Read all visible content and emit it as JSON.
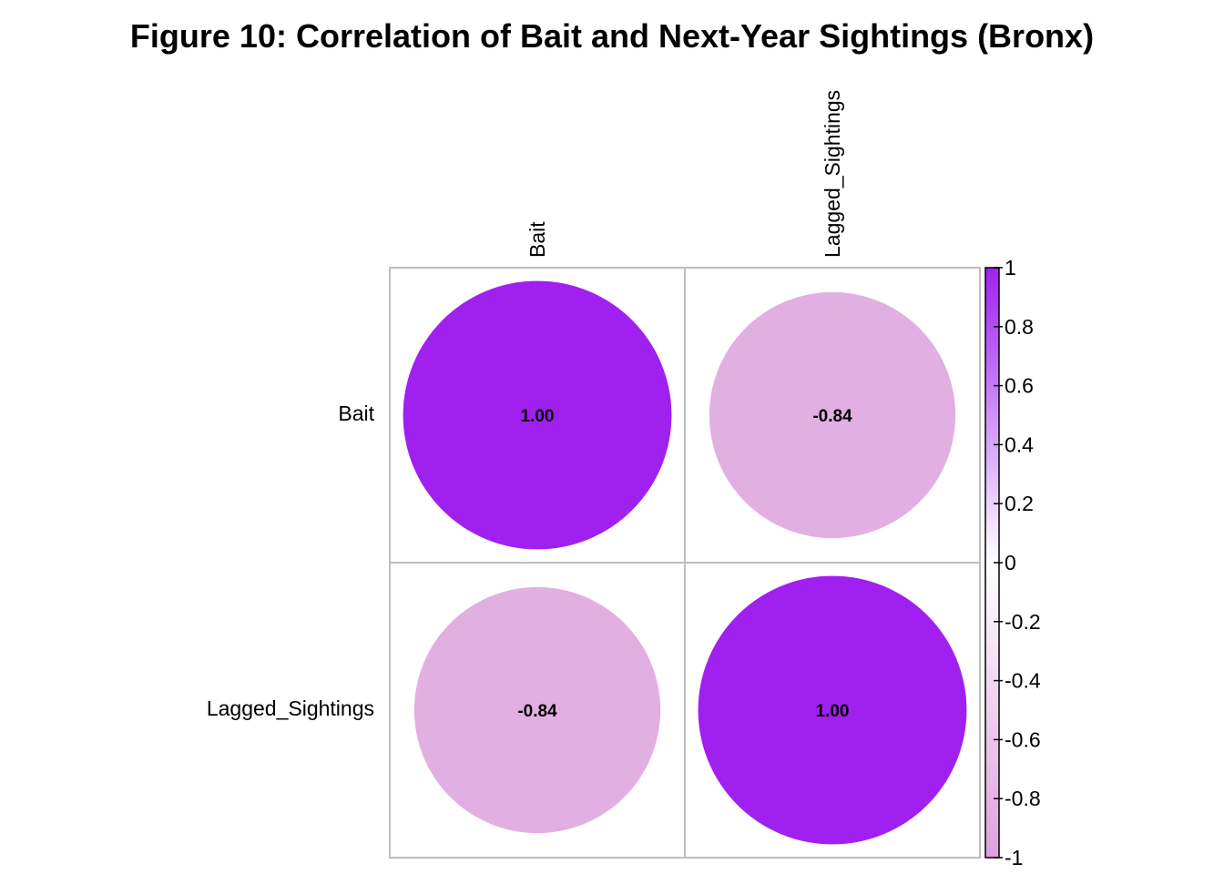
{
  "chart_data": {
    "type": "heatmap",
    "title": "Figure 10: Correlation of Bait and Next-Year Sightings (Bronx)",
    "variables": [
      "Bait",
      "Lagged_Sightings"
    ],
    "matrix": [
      [
        1.0,
        -0.84
      ],
      [
        -0.84,
        1.0
      ]
    ],
    "cell_labels": [
      [
        "1.00",
        "-0.84"
      ],
      [
        "-0.84",
        "1.00"
      ]
    ],
    "glyph": "circle",
    "color_scale": {
      "min": -1,
      "max": 1,
      "ticks": [
        "1",
        "0.8",
        "0.6",
        "0.4",
        "0.2",
        "0",
        "-0.2",
        "-0.4",
        "-0.6",
        "-0.8",
        "-1"
      ],
      "positive_color": "#A020F0",
      "negative_color": "#DDA0DD",
      "mid_color": "#FFFFFF"
    },
    "grid": true,
    "legend_position": "right"
  }
}
